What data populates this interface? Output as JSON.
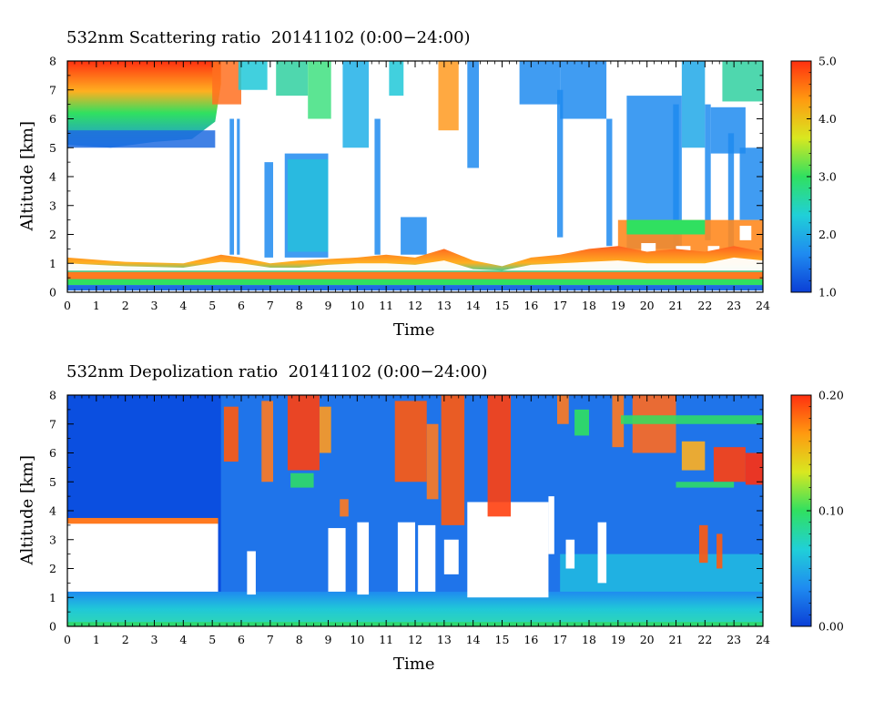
{
  "chart_data": [
    {
      "type": "heatmap",
      "title": "532nm Scattering ratio  20141102 (0:00−24:00)",
      "xlabel": "Time",
      "ylabel": "Altitude [km]",
      "x_ticks": [
        "0",
        "1",
        "2",
        "3",
        "4",
        "5",
        "6",
        "7",
        "8",
        "9",
        "10",
        "11",
        "12",
        "13",
        "14",
        "15",
        "16",
        "17",
        "18",
        "19",
        "20",
        "21",
        "22",
        "23",
        "24"
      ],
      "y_ticks": [
        "0",
        "1",
        "2",
        "3",
        "4",
        "5",
        "6",
        "7",
        "8"
      ],
      "xlim": [
        0,
        24
      ],
      "ylim": [
        0,
        8
      ],
      "colorbar": {
        "ticks": [
          "1.0",
          "2.0",
          "3.0",
          "4.0",
          "5.0"
        ],
        "range": [
          1.0,
          5.0
        ],
        "colors": [
          "#0b3fd6",
          "#1f8bf0",
          "#20d0d8",
          "#30e060",
          "#d8e820",
          "#ff9a10",
          "#ff3010"
        ]
      },
      "features": [
        {
          "t_start": 0.0,
          "t_end": 5.3,
          "alt_bottom": 5.0,
          "alt_top": 8.0,
          "value": 4.0
        },
        {
          "t_start": 0.0,
          "t_end": 24.0,
          "alt_bottom": 0.0,
          "alt_top": 0.6,
          "value": 2.5
        },
        {
          "t_start": 7.5,
          "t_end": 9.0,
          "alt_bottom": 1.2,
          "alt_top": 4.8,
          "value": 2.2
        },
        {
          "t_start": 11.5,
          "t_end": 12.4,
          "alt_bottom": 1.3,
          "alt_top": 2.6,
          "value": 2.0
        },
        {
          "t_start": 19.3,
          "t_end": 21.2,
          "alt_bottom": 1.5,
          "alt_top": 6.8,
          "value": 2.0
        },
        {
          "t_start": 19.0,
          "t_end": 24.0,
          "alt_bottom": 1.0,
          "alt_top": 2.5,
          "value": 3.8
        }
      ]
    },
    {
      "type": "heatmap",
      "title": "532nm Depolization ratio  20141102 (0:00−24:00)",
      "xlabel": "Time",
      "ylabel": "Altitude [km]",
      "x_ticks": [
        "0",
        "1",
        "2",
        "3",
        "4",
        "5",
        "6",
        "7",
        "8",
        "9",
        "10",
        "11",
        "12",
        "13",
        "14",
        "15",
        "16",
        "17",
        "18",
        "19",
        "20",
        "21",
        "22",
        "23",
        "24"
      ],
      "y_ticks": [
        "0",
        "1",
        "2",
        "3",
        "4",
        "5",
        "6",
        "7",
        "8"
      ],
      "xlim": [
        0,
        24
      ],
      "ylim": [
        0,
        8
      ],
      "colorbar": {
        "ticks": [
          "0.00",
          "0.10",
          "0.20"
        ],
        "range": [
          0.0,
          0.2
        ],
        "colors": [
          "#0b3fd6",
          "#1f8bf0",
          "#20d0d8",
          "#30e060",
          "#d8e820",
          "#ff9a10",
          "#ff3010"
        ]
      },
      "features": [
        {
          "t_start": 0.0,
          "t_end": 5.2,
          "alt_bottom": 3.7,
          "alt_top": 8.0,
          "value": 0.01
        },
        {
          "t_start": 0.0,
          "t_end": 5.2,
          "alt_bottom": 1.2,
          "alt_top": 3.7,
          "value": null
        },
        {
          "t_start": 0.0,
          "t_end": 24.0,
          "alt_bottom": 0.0,
          "alt_top": 1.0,
          "value": 0.05
        },
        {
          "t_start": 7.6,
          "t_end": 8.6,
          "alt_bottom": 5.5,
          "alt_top": 8.0,
          "value": 0.18
        },
        {
          "t_start": 11.3,
          "t_end": 13.6,
          "alt_bottom": 3.8,
          "alt_top": 8.0,
          "value": 0.17
        },
        {
          "t_start": 14.7,
          "t_end": 15.4,
          "alt_bottom": 4.5,
          "alt_top": 8.0,
          "value": 0.17
        },
        {
          "t_start": 19.0,
          "t_end": 24.0,
          "alt_bottom": 5.0,
          "alt_top": 8.0,
          "value": 0.16
        }
      ]
    }
  ]
}
